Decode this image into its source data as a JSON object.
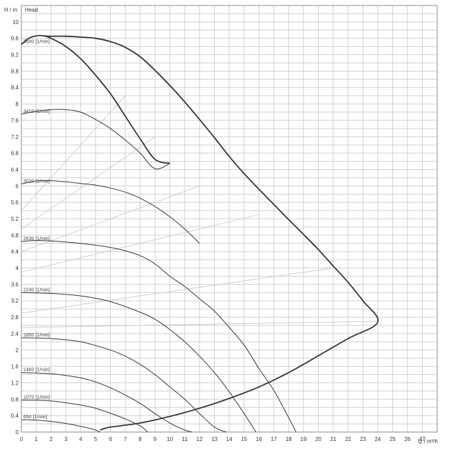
{
  "chart_data": {
    "type": "line",
    "title": "",
    "ylabel": "H / m",
    "xlabel": "Q / m³/h",
    "legend_text": "Head",
    "xlim": [
      0,
      28
    ],
    "ylim": [
      0,
      10.4
    ],
    "grid": true,
    "x_ticks": [
      "0",
      "1",
      "2",
      "3",
      "4",
      "5",
      "6",
      "7",
      "8",
      "9",
      "10",
      "11",
      "12",
      "13",
      "14",
      "15",
      "16",
      "17",
      "18",
      "19",
      "20",
      "21",
      "22",
      "23",
      "24",
      "25",
      "26",
      "27"
    ],
    "y_ticks": [
      "0",
      "0.4",
      "0.8",
      "1.2",
      "1.6",
      "2",
      "2.4",
      "2.8",
      "3.2",
      "3.6",
      "4",
      "4.4",
      "4.8",
      "5.2",
      "5.6",
      "6",
      "6.4",
      "6.8",
      "7.2",
      "7.6",
      "8",
      "8.4",
      "8.8",
      "9.2",
      "9.6",
      "10"
    ],
    "series": [
      {
        "name": "3800 [1/min]",
        "x": [
          0,
          0.5,
          1,
          1.5,
          2,
          3,
          4,
          5,
          6,
          7,
          8,
          9,
          10
        ],
        "y": [
          9.45,
          9.6,
          9.66,
          9.66,
          9.6,
          9.4,
          9.1,
          8.7,
          8.25,
          7.7,
          7.15,
          6.65,
          6.55
        ]
      },
      {
        "name": "3410 [1/min]",
        "x": [
          0,
          1,
          2,
          3,
          4,
          5,
          6,
          7,
          8,
          9,
          10
        ],
        "y": [
          7.75,
          7.82,
          7.86,
          7.86,
          7.8,
          7.62,
          7.4,
          7.12,
          6.8,
          6.42,
          6.55
        ]
      },
      {
        "name": "3020 [1/min]",
        "x": [
          0,
          1,
          2,
          3,
          4,
          5,
          6,
          7,
          8,
          9,
          10,
          11,
          12
        ],
        "y": [
          6.05,
          6.12,
          6.13,
          6.1,
          6.06,
          6.02,
          5.95,
          5.85,
          5.7,
          5.5,
          5.25,
          4.95,
          4.6
        ]
      },
      {
        "name": "2630 [1/min]",
        "x": [
          0,
          1,
          2,
          4,
          6,
          7,
          8,
          9,
          10,
          11,
          12,
          13,
          14,
          15,
          16,
          17,
          18,
          18.5
        ],
        "y": [
          4.65,
          4.67,
          4.66,
          4.6,
          4.5,
          4.42,
          4.3,
          4.1,
          3.8,
          3.55,
          3.25,
          2.95,
          2.55,
          2.12,
          1.55,
          1.02,
          0.35,
          0.0
        ]
      },
      {
        "name": "2240 [1/min]",
        "x": [
          0,
          2,
          4,
          6,
          8,
          9,
          10,
          11,
          12,
          13,
          14,
          15,
          15.8
        ],
        "y": [
          3.4,
          3.38,
          3.32,
          3.18,
          2.92,
          2.75,
          2.5,
          2.2,
          1.85,
          1.45,
          0.98,
          0.45,
          0.0
        ]
      },
      {
        "name": "1850 [1/min]",
        "x": [
          0,
          2,
          4,
          6,
          7,
          8,
          9,
          10,
          11,
          12,
          13,
          13.8
        ],
        "y": [
          2.3,
          2.28,
          2.2,
          2.0,
          1.85,
          1.65,
          1.4,
          1.1,
          0.8,
          0.45,
          0.12,
          0.0
        ]
      },
      {
        "name": "1460 [1/min]",
        "x": [
          0,
          2,
          4,
          5,
          6,
          7,
          8,
          9,
          10,
          11,
          11.5
        ],
        "y": [
          1.45,
          1.42,
          1.32,
          1.22,
          1.08,
          0.9,
          0.7,
          0.45,
          0.22,
          0.05,
          0.0
        ]
      },
      {
        "name": "1070 [1/min]",
        "x": [
          0,
          2,
          4,
          5,
          6,
          7,
          8,
          8.5
        ],
        "y": [
          0.78,
          0.76,
          0.66,
          0.58,
          0.46,
          0.32,
          0.15,
          0.0
        ]
      },
      {
        "name": "650 [1/min]",
        "x": [
          0,
          1,
          2,
          3,
          4,
          5,
          5.3
        ],
        "y": [
          0.3,
          0.29,
          0.26,
          0.21,
          0.14,
          0.05,
          0.0
        ]
      }
    ],
    "envelope": {
      "x": [
        5.3,
        6,
        8,
        10,
        12,
        14,
        16,
        18,
        20,
        22,
        24,
        23,
        22,
        21,
        20,
        19,
        18,
        17,
        16,
        15,
        14,
        13,
        12,
        11,
        10,
        9,
        8,
        7,
        6,
        5,
        4,
        3,
        2,
        1.5
      ],
      "y": [
        0.05,
        0.12,
        0.22,
        0.38,
        0.58,
        0.82,
        1.1,
        1.45,
        1.86,
        2.28,
        2.68,
        3.2,
        3.65,
        4.05,
        4.45,
        4.82,
        5.18,
        5.55,
        5.92,
        6.3,
        6.72,
        7.18,
        7.62,
        8.05,
        8.45,
        8.82,
        9.15,
        9.38,
        9.52,
        9.6,
        9.63,
        9.65,
        9.65,
        9.66
      ]
    },
    "system_curves_approx": [
      {
        "x": [
          0,
          24
        ],
        "y": [
          2.55,
          2.7
        ]
      },
      {
        "x": [
          0,
          21
        ],
        "y": [
          2.9,
          4.0
        ]
      },
      {
        "x": [
          0,
          16
        ],
        "y": [
          3.9,
          5.3
        ]
      },
      {
        "x": [
          0,
          12
        ],
        "y": [
          4.4,
          6.0
        ]
      },
      {
        "x": [
          0,
          9
        ],
        "y": [
          4.95,
          7.2
        ]
      },
      {
        "x": [
          0,
          7
        ],
        "y": [
          5.4,
          8.2
        ]
      }
    ]
  }
}
